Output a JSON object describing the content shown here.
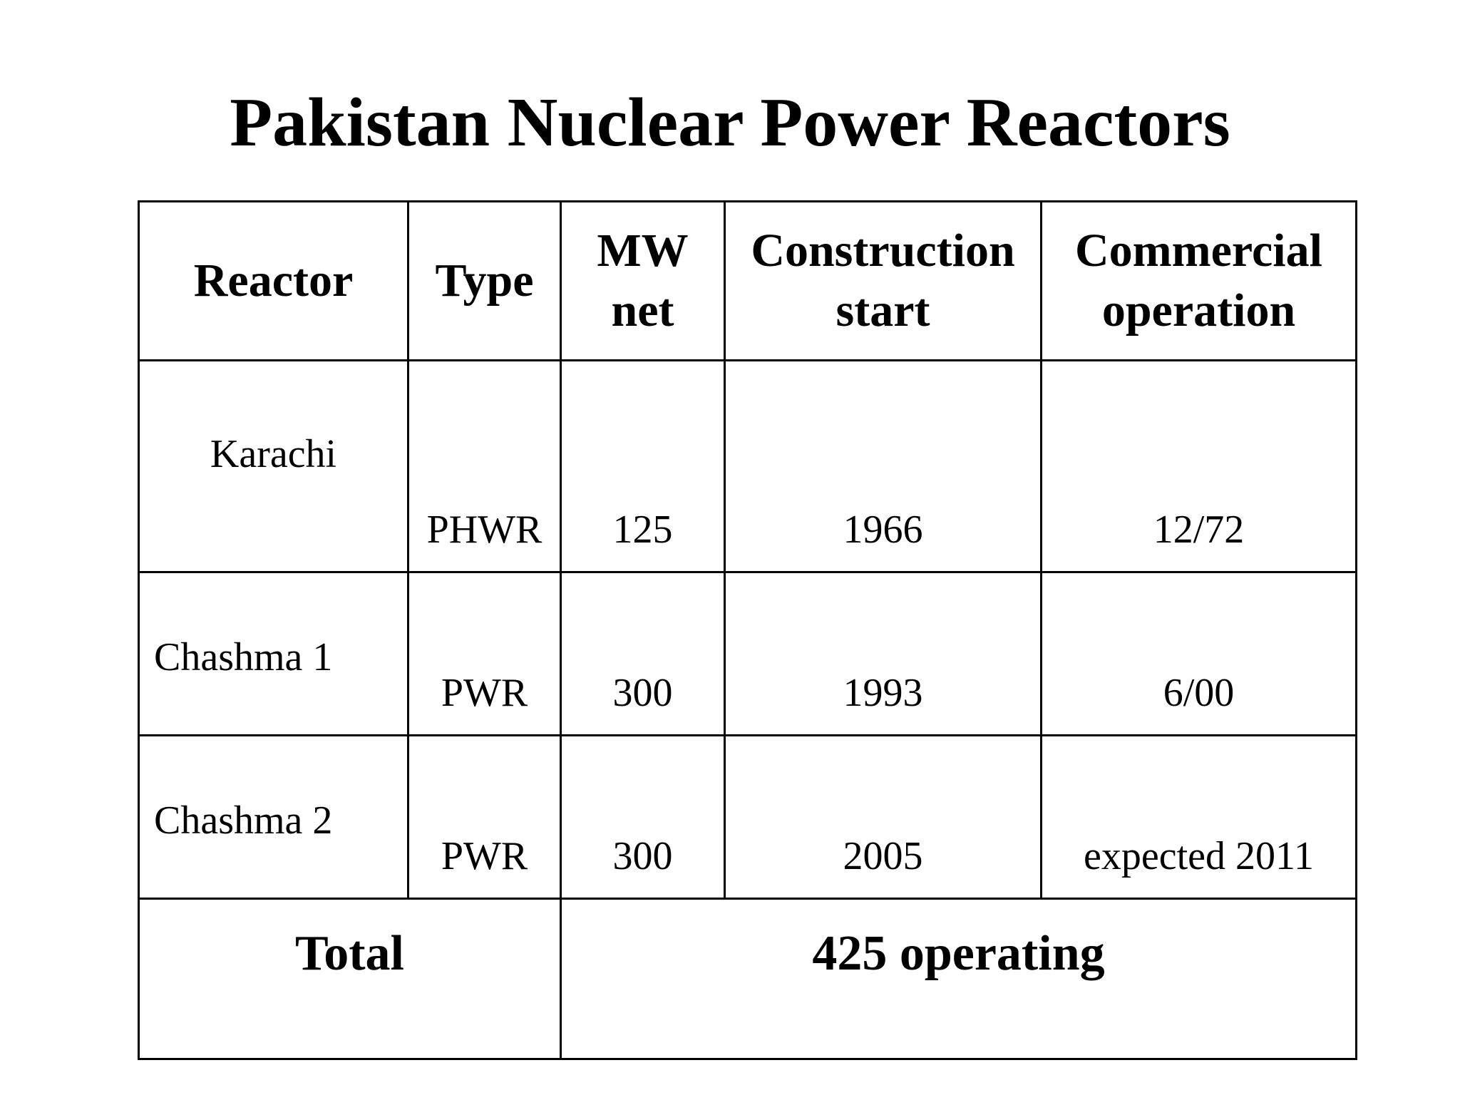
{
  "title": "Pakistan Nuclear Power Reactors",
  "table": {
    "headers": {
      "reactor": "Reactor",
      "type": "Type",
      "mw_line1": "MW",
      "mw_line2": "net",
      "construction_line1": "Construction",
      "construction_line2": "start",
      "commercial_line1": "Commercial",
      "commercial_line2": "operation"
    },
    "rows": [
      {
        "reactor": "Karachi",
        "type": "PHWR",
        "mw_net": "125",
        "construction_start": "1966",
        "commercial_operation": "12/72"
      },
      {
        "reactor": "Chashma 1",
        "type": "PWR",
        "mw_net": "300",
        "construction_start": "1993",
        "commercial_operation": "6/00"
      },
      {
        "reactor": "Chashma 2",
        "type": "PWR",
        "mw_net": "300",
        "construction_start": "2005",
        "commercial_operation": "expected 2011"
      }
    ],
    "total": {
      "label": "Total",
      "value": "425 operating"
    }
  }
}
